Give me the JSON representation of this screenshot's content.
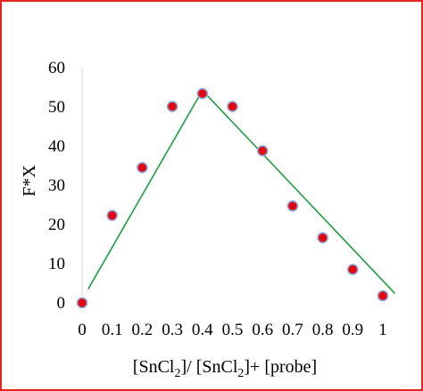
{
  "chart_data": {
    "type": "scatter",
    "xlabel": "[SnCl2]/ [SnCl2]+ [probe]",
    "xlabel_parts": [
      "[SnCl",
      "2",
      "]/ [SnCl",
      "2",
      "]+ [probe]"
    ],
    "ylabel": "F*X",
    "xlim": [
      0,
      1
    ],
    "ylim": [
      0,
      60
    ],
    "x_ticks": [
      "0",
      "0.1",
      "0.2",
      "0.3",
      "0.4",
      "0.5",
      "0.6",
      "0.7",
      "0.8",
      "0.9",
      "1"
    ],
    "y_ticks": [
      "0",
      "10",
      "20",
      "30",
      "40",
      "50",
      "60"
    ],
    "grid": false,
    "series": [
      {
        "type": "scatter",
        "color": "#e30613",
        "edge_color": "#8fa8d8",
        "x": [
          0,
          0.1,
          0.2,
          0.3,
          0.4,
          0.5,
          0.6,
          0.7,
          0.8,
          0.9,
          1.0
        ],
        "y": [
          0,
          22.3,
          34.5,
          50.1,
          53.4,
          50.1,
          38.8,
          24.7,
          16.6,
          8.5,
          1.8
        ]
      },
      {
        "type": "line",
        "color": "#1e9e3e",
        "x": [
          0.02,
          0.4,
          1.04
        ],
        "y": [
          3.5,
          54.2,
          2.4
        ]
      }
    ]
  }
}
